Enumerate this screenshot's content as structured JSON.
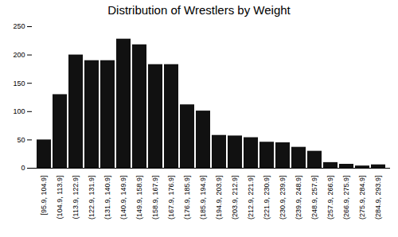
{
  "chart_data": {
    "type": "bar",
    "title": "Distribution of Wrestlers by Weight",
    "categories": [
      "[95.9, 104.9]",
      "(104.9, 113.9]",
      "(113.9, 122.9]",
      "(122.9, 131.9]",
      "(131.9, 140.9]",
      "(140.9, 149.9]",
      "(149.9, 158.9]",
      "(158.9, 167.9]",
      "(167.9, 176.9]",
      "(176.9, 185.9]",
      "(185.9, 194.9]",
      "(194.9, 203.9]",
      "(203.9, 212.9]",
      "(212.9, 221.9]",
      "(221.9, 230.9]",
      "(230.9, 239.9]",
      "(239.9, 248.9]",
      "(248.9, 257.9]",
      "(257.9, 266.9]",
      "(266.9, 275.9]",
      "(275.9, 284.9]",
      "(284.9, 293.9]"
    ],
    "values": [
      50,
      130,
      200,
      190,
      190,
      228,
      218,
      183,
      183,
      112,
      101,
      58,
      57,
      54,
      46,
      45,
      37,
      30,
      10,
      7,
      4,
      6
    ],
    "color": "#111111",
    "ylim": [
      0,
      250
    ],
    "yticks": [
      0,
      50,
      100,
      150,
      200,
      250
    ],
    "grid": false
  }
}
